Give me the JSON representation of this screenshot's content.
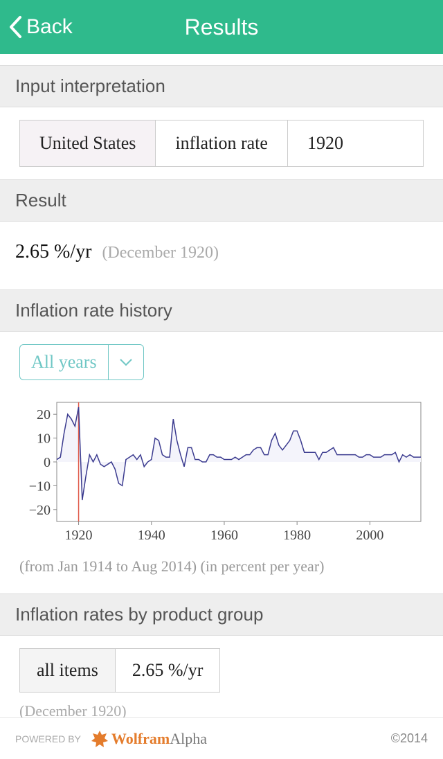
{
  "header": {
    "back": "Back",
    "title": "Results"
  },
  "sections": {
    "input_interpretation": {
      "title": "Input interpretation",
      "cells": [
        "United States",
        "inflation rate",
        "1920"
      ]
    },
    "result": {
      "title": "Result",
      "value": "2.65 %/yr",
      "note": "(December 1920)"
    },
    "history": {
      "title": "Inflation rate history",
      "dropdown": "All years",
      "chart": {
        "type": "line",
        "xlim": [
          1914,
          2014
        ],
        "ylim": [
          -25,
          25
        ],
        "yticks": [
          -20,
          -10,
          0,
          10,
          20
        ],
        "xticks": [
          1920,
          1940,
          1960,
          1980,
          2000
        ],
        "marker_x": 1920,
        "axis_color": "#888888",
        "line_color": "#3b3b8f",
        "fill_color": "#f4f4fb",
        "marker_color": "#e05a4a",
        "tick_font_size": 20,
        "data": [
          [
            1914,
            1
          ],
          [
            1915,
            2
          ],
          [
            1916,
            12
          ],
          [
            1917,
            20
          ],
          [
            1918,
            18
          ],
          [
            1919,
            15
          ],
          [
            1920,
            23
          ],
          [
            1921,
            -16
          ],
          [
            1922,
            -6
          ],
          [
            1923,
            3
          ],
          [
            1924,
            0
          ],
          [
            1925,
            3
          ],
          [
            1926,
            -1
          ],
          [
            1927,
            -2
          ],
          [
            1928,
            -1
          ],
          [
            1929,
            0
          ],
          [
            1930,
            -3
          ],
          [
            1931,
            -9
          ],
          [
            1932,
            -10
          ],
          [
            1933,
            1
          ],
          [
            1934,
            2
          ],
          [
            1935,
            3
          ],
          [
            1936,
            1
          ],
          [
            1937,
            3
          ],
          [
            1938,
            -2
          ],
          [
            1939,
            0
          ],
          [
            1940,
            1
          ],
          [
            1941,
            10
          ],
          [
            1942,
            9
          ],
          [
            1943,
            3
          ],
          [
            1944,
            2
          ],
          [
            1945,
            2
          ],
          [
            1946,
            18
          ],
          [
            1947,
            9
          ],
          [
            1948,
            3
          ],
          [
            1949,
            -2
          ],
          [
            1950,
            6
          ],
          [
            1951,
            6
          ],
          [
            1952,
            1
          ],
          [
            1953,
            1
          ],
          [
            1954,
            0
          ],
          [
            1955,
            0
          ],
          [
            1956,
            3
          ],
          [
            1957,
            3
          ],
          [
            1958,
            2
          ],
          [
            1959,
            2
          ],
          [
            1960,
            1
          ],
          [
            1961,
            1
          ],
          [
            1962,
            1
          ],
          [
            1963,
            2
          ],
          [
            1964,
            1
          ],
          [
            1965,
            2
          ],
          [
            1966,
            3
          ],
          [
            1967,
            3
          ],
          [
            1968,
            5
          ],
          [
            1969,
            6
          ],
          [
            1970,
            6
          ],
          [
            1971,
            3
          ],
          [
            1972,
            3
          ],
          [
            1973,
            9
          ],
          [
            1974,
            12
          ],
          [
            1975,
            7
          ],
          [
            1976,
            5
          ],
          [
            1977,
            7
          ],
          [
            1978,
            9
          ],
          [
            1979,
            13
          ],
          [
            1980,
            13
          ],
          [
            1981,
            9
          ],
          [
            1982,
            4
          ],
          [
            1983,
            4
          ],
          [
            1984,
            4
          ],
          [
            1985,
            4
          ],
          [
            1986,
            1
          ],
          [
            1987,
            4
          ],
          [
            1988,
            4
          ],
          [
            1989,
            5
          ],
          [
            1990,
            6
          ],
          [
            1991,
            3
          ],
          [
            1992,
            3
          ],
          [
            1993,
            3
          ],
          [
            1994,
            3
          ],
          [
            1995,
            3
          ],
          [
            1996,
            3
          ],
          [
            1997,
            2
          ],
          [
            1998,
            2
          ],
          [
            1999,
            3
          ],
          [
            2000,
            3
          ],
          [
            2001,
            2
          ],
          [
            2002,
            2
          ],
          [
            2003,
            2
          ],
          [
            2004,
            3
          ],
          [
            2005,
            3
          ],
          [
            2006,
            3
          ],
          [
            2007,
            4
          ],
          [
            2008,
            0
          ],
          [
            2009,
            3
          ],
          [
            2010,
            2
          ],
          [
            2011,
            3
          ],
          [
            2012,
            2
          ],
          [
            2013,
            2
          ],
          [
            2014,
            2
          ]
        ]
      },
      "caption": "(from Jan 1914 to Aug 2014)  (in percent per year)"
    },
    "by_group": {
      "title": "Inflation rates by product group",
      "cells": [
        "all items",
        "2.65 %/yr"
      ],
      "note": "(December 1920)"
    }
  },
  "footer": {
    "powered": "POWERED BY",
    "brand_w": "Wolfram",
    "brand_a": "Alpha",
    "copyright": "©2014"
  }
}
